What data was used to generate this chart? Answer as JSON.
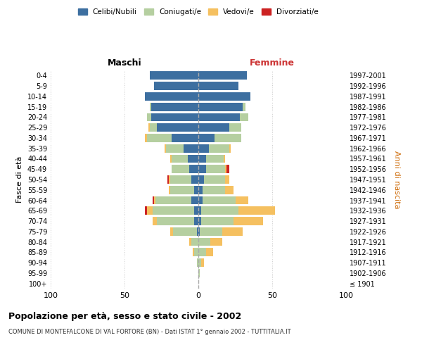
{
  "age_groups": [
    "100+",
    "95-99",
    "90-94",
    "85-89",
    "80-84",
    "75-79",
    "70-74",
    "65-69",
    "60-64",
    "55-59",
    "50-54",
    "45-49",
    "40-44",
    "35-39",
    "30-34",
    "25-29",
    "20-24",
    "15-19",
    "10-14",
    "5-9",
    "0-4"
  ],
  "birth_years": [
    "≤ 1901",
    "1902-1906",
    "1907-1911",
    "1912-1916",
    "1917-1921",
    "1922-1926",
    "1927-1931",
    "1932-1936",
    "1937-1941",
    "1942-1946",
    "1947-1951",
    "1952-1956",
    "1957-1961",
    "1962-1966",
    "1967-1971",
    "1972-1976",
    "1977-1981",
    "1982-1986",
    "1987-1991",
    "1992-1996",
    "1997-2001"
  ],
  "male": {
    "celibi": [
      0,
      0,
      0,
      0,
      0,
      1,
      3,
      3,
      5,
      3,
      5,
      6,
      7,
      10,
      18,
      28,
      32,
      32,
      36,
      30,
      33
    ],
    "coniugati": [
      0,
      0,
      1,
      3,
      5,
      16,
      25,
      28,
      24,
      16,
      14,
      12,
      11,
      12,
      17,
      5,
      3,
      1,
      0,
      0,
      0
    ],
    "vedovi": [
      0,
      0,
      0,
      1,
      1,
      2,
      3,
      4,
      1,
      1,
      1,
      0,
      1,
      1,
      1,
      1,
      0,
      0,
      0,
      0,
      0
    ],
    "divorziati": [
      0,
      0,
      0,
      0,
      0,
      0,
      0,
      1,
      1,
      0,
      1,
      0,
      0,
      0,
      0,
      0,
      0,
      0,
      0,
      0,
      0
    ]
  },
  "female": {
    "nubili": [
      0,
      0,
      0,
      0,
      0,
      1,
      2,
      2,
      3,
      3,
      4,
      5,
      5,
      7,
      11,
      21,
      28,
      30,
      35,
      27,
      33
    ],
    "coniugate": [
      0,
      1,
      2,
      5,
      8,
      15,
      22,
      25,
      22,
      15,
      14,
      13,
      12,
      14,
      18,
      8,
      6,
      2,
      0,
      0,
      0
    ],
    "vedove": [
      0,
      0,
      2,
      5,
      8,
      14,
      20,
      25,
      9,
      6,
      3,
      1,
      1,
      1,
      0,
      0,
      0,
      0,
      0,
      0,
      0
    ],
    "divorziate": [
      0,
      0,
      0,
      0,
      0,
      0,
      0,
      0,
      0,
      0,
      0,
      2,
      0,
      0,
      0,
      0,
      0,
      0,
      0,
      0,
      0
    ]
  },
  "colors": {
    "celibi": "#3d6fa0",
    "coniugati": "#b5cfa0",
    "vedovi": "#f5c060",
    "divorziati": "#cc2222"
  },
  "title": "Popolazione per età, sesso e stato civile - 2002",
  "subtitle": "COMUNE DI MONTEFALCONE DI VAL FORTORE (BN) - Dati ISTAT 1° gennaio 2002 - TUTTITALIA.IT",
  "xlabel_left": "Maschi",
  "xlabel_right": "Femmine",
  "ylabel_left": "Fasce di età",
  "ylabel_right": "Anni di nascita",
  "xlim": 100,
  "background": "#ffffff",
  "grid_color": "#cccccc"
}
